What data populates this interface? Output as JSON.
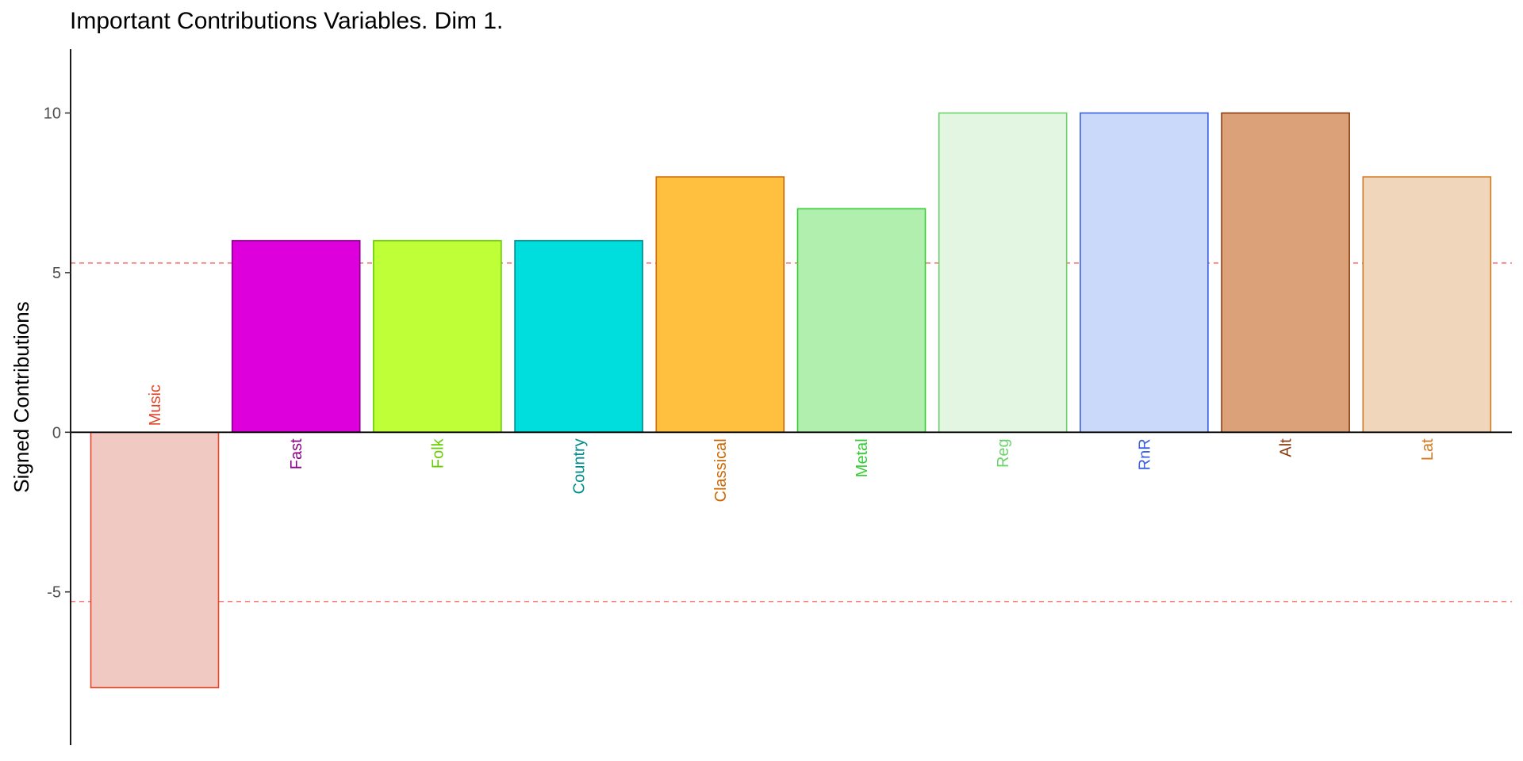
{
  "chart_data": {
    "type": "bar",
    "title": "Important Contributions Variables. Dim 1.",
    "xlabel": "",
    "ylabel": "Signed Contributions",
    "ylim": [
      -9.8,
      12
    ],
    "yticks": [
      -5,
      0,
      5,
      10
    ],
    "threshold_lines": [
      5.3,
      -5.3
    ],
    "threshold_color": "#F8766D",
    "grid": false,
    "legend": "none",
    "categories": [
      "Music",
      "Fast",
      "Folk",
      "Country",
      "Classical",
      "Metal",
      "Reg",
      "RnR",
      "Alt",
      "Lat"
    ],
    "values": [
      -8,
      6,
      6,
      6,
      8,
      7,
      10,
      10,
      10,
      8
    ],
    "fill_colors": [
      "#F0CAC2",
      "#DD00DD",
      "#BFFF38",
      "#00DDDD",
      "#FFBF3F",
      "#B1EFAF",
      "#E2F6E2",
      "#CAD8FA",
      "#DBA279",
      "#F0D6BA"
    ],
    "stroke_colors": [
      "#E0472B",
      "#8B008B",
      "#66CD00",
      "#008B8B",
      "#CD6600",
      "#32CD32",
      "#6BD36B",
      "#3A5FE0",
      "#8B3A0F",
      "#D2781E"
    ],
    "label_colors": [
      "#E0472B",
      "#8B008B",
      "#66CD00",
      "#008B8B",
      "#CD6600",
      "#32CD32",
      "#6BD36B",
      "#3A5FE0",
      "#8B3A0F",
      "#D2781E"
    ]
  }
}
